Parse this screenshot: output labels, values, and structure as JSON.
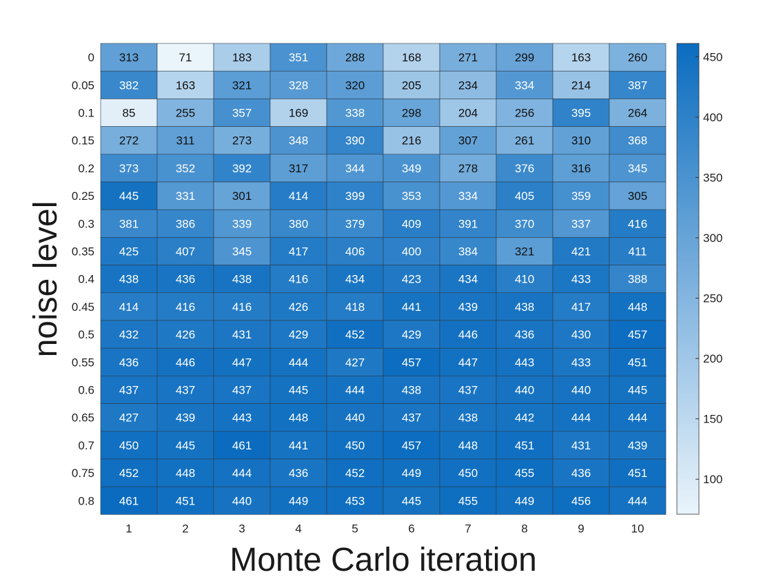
{
  "chart_data": {
    "type": "heatmap",
    "xlabel": "Monte Carlo iteration",
    "ylabel": "noise level",
    "x_categories": [
      "1",
      "2",
      "3",
      "4",
      "5",
      "6",
      "7",
      "8",
      "9",
      "10"
    ],
    "y_categories": [
      "0",
      "0.05",
      "0.1",
      "0.15",
      "0.2",
      "0.25",
      "0.3",
      "0.35",
      "0.4",
      "0.45",
      "0.5",
      "0.55",
      "0.6",
      "0.65",
      "0.7",
      "0.75",
      "0.8"
    ],
    "values": [
      [
        313,
        71,
        183,
        351,
        288,
        168,
        271,
        299,
        163,
        260
      ],
      [
        382,
        163,
        321,
        328,
        320,
        205,
        234,
        334,
        214,
        387
      ],
      [
        85,
        255,
        357,
        169,
        338,
        298,
        204,
        256,
        395,
        264
      ],
      [
        272,
        311,
        273,
        348,
        390,
        216,
        307,
        261,
        310,
        368
      ],
      [
        373,
        352,
        392,
        317,
        344,
        349,
        278,
        376,
        316,
        345
      ],
      [
        445,
        331,
        301,
        414,
        399,
        353,
        334,
        405,
        359,
        305
      ],
      [
        381,
        386,
        339,
        380,
        379,
        409,
        391,
        370,
        337,
        416
      ],
      [
        425,
        407,
        345,
        417,
        406,
        400,
        384,
        321,
        421,
        411
      ],
      [
        438,
        436,
        438,
        416,
        434,
        423,
        434,
        410,
        433,
        388
      ],
      [
        414,
        416,
        416,
        426,
        418,
        441,
        439,
        438,
        417,
        448
      ],
      [
        432,
        426,
        431,
        429,
        452,
        429,
        446,
        436,
        430,
        457
      ],
      [
        436,
        446,
        447,
        444,
        427,
        457,
        447,
        443,
        433,
        451
      ],
      [
        437,
        437,
        437,
        445,
        444,
        438,
        437,
        440,
        440,
        445
      ],
      [
        427,
        439,
        443,
        448,
        440,
        437,
        438,
        442,
        444,
        444
      ],
      [
        450,
        445,
        461,
        441,
        450,
        457,
        448,
        451,
        431,
        439
      ],
      [
        452,
        448,
        444,
        436,
        452,
        449,
        450,
        455,
        436,
        451
      ],
      [
        461,
        451,
        440,
        449,
        453,
        445,
        455,
        449,
        456,
        444
      ]
    ],
    "colorbar": {
      "ticks": [
        100,
        150,
        200,
        250,
        300,
        350,
        400,
        450
      ],
      "range": [
        71,
        461
      ],
      "color_low": "#eaf4fb",
      "color_high": "#0b6cbf"
    },
    "grid": false
  }
}
